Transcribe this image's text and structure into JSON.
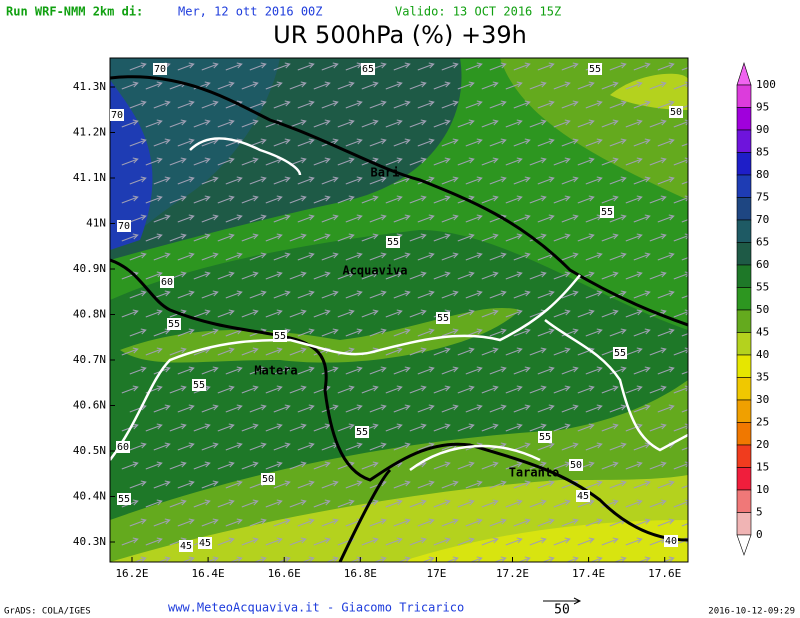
{
  "header": {
    "run": "Run WRF-NMM 2km di:",
    "init": "Mer, 12 ott 2016 00Z",
    "valid": "Valido: 13 OCT 2016 15Z",
    "title": "UR 500hPa (%) +39h"
  },
  "map": {
    "lat_labels": [
      "41.3N",
      "41.2N",
      "41.1N",
      "41N",
      "40.9N",
      "40.8N",
      "40.7N",
      "40.6N",
      "40.5N",
      "40.4N",
      "40.3N"
    ],
    "lon_labels": [
      "16.2E",
      "16.4E",
      "16.6E",
      "16.8E",
      "17E",
      "17.2E",
      "17.4E",
      "17.6E"
    ],
    "contour_labels": [
      "70",
      "65",
      "55",
      "70",
      "50",
      "70",
      "55",
      "55",
      "60",
      "55",
      "55",
      "55",
      "55",
      "55",
      "55",
      "55",
      "60",
      "50",
      "50",
      "55",
      "45",
      "45",
      "45",
      "40"
    ],
    "cities": [
      "Bari",
      "Acquaviva",
      "Matera",
      "Taranto"
    ]
  },
  "colorbar": {
    "levels": [
      "100",
      "95",
      "90",
      "85",
      "80",
      "75",
      "70",
      "65",
      "60",
      "55",
      "50",
      "45",
      "40",
      "35",
      "30",
      "25",
      "20",
      "15",
      "10",
      "5",
      "0"
    ],
    "colors": [
      "#f064f0",
      "#dc3cdc",
      "#a000dc",
      "#6e14dc",
      "#1e1ec8",
      "#1e3cb4",
      "#1e4682",
      "#1e5a64",
      "#1e5a46",
      "#1e7828",
      "#2d9620",
      "#64aa1e",
      "#b4d21e",
      "#e6e600",
      "#f0c800",
      "#f0a000",
      "#f07800",
      "#f03c1e",
      "#f01e3c",
      "#f07878",
      "#f0b4b4",
      "#ffffff"
    ]
  },
  "footer": {
    "credits": "GrADS: COLA/IGES",
    "site": "www.MeteoAcquaviva.it - Giacomo Tricarico",
    "vector_scale": "50",
    "timestamp": "2016-10-12-09:29"
  }
}
